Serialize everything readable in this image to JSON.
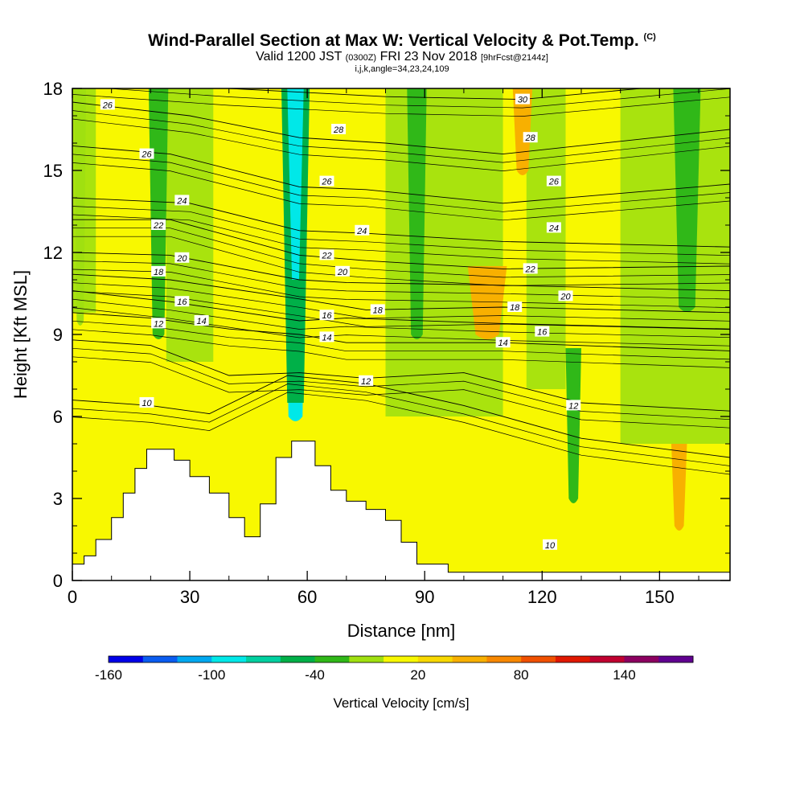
{
  "header": {
    "title_main": "Wind-Parallel Section at Max W: Vertical Velocity & Pot.Temp.",
    "title_copy": "(C)",
    "valid_prefix": "Valid 1200 JST",
    "valid_utc": "(0300Z)",
    "valid_date": "FRI 23 Nov 2018",
    "valid_fcst": "[9hrFcst@2144z]",
    "params": "i,j,k,angle=34,23,24,109"
  },
  "chart_data": {
    "type": "heatmap",
    "xlabel": "Distance [nm]",
    "ylabel": "Height [Kft MSL]",
    "xlim": [
      0,
      168
    ],
    "ylim": [
      0,
      18
    ],
    "x_ticks": [
      0,
      30,
      60,
      90,
      120,
      150
    ],
    "x_tick_labels": [
      "0",
      "30",
      "60",
      "90",
      "120",
      "150"
    ],
    "y_ticks": [
      0,
      3,
      6,
      9,
      12,
      15,
      18
    ],
    "y_tick_labels": [
      "0",
      "3",
      "6",
      "9",
      "12",
      "15",
      "18"
    ],
    "colorbar": {
      "title": "Vertical Velocity [cm/s]",
      "levels": [
        -160,
        -140,
        -120,
        -100,
        -80,
        -60,
        -40,
        -20,
        0,
        20,
        40,
        60,
        80,
        100,
        120,
        140,
        160
      ],
      "label_values": [
        "-160",
        "-100",
        "-40",
        "20",
        "80",
        "140"
      ],
      "colors": [
        "#0000e8",
        "#0a5cf0",
        "#00a8f0",
        "#00e8e8",
        "#00d0a0",
        "#00b048",
        "#30b818",
        "#a0e010",
        "#f8f800",
        "#f8d800",
        "#f8b000",
        "#f88800",
        "#f05000",
        "#e01800",
        "#c00030",
        "#8c0060",
        "#600090"
      ]
    },
    "velocity_bands": [
      {
        "x_center": 2,
        "top": 18,
        "bottom": 9.5,
        "width": 3,
        "class": -20
      },
      {
        "x_center": 22,
        "top": 18,
        "bottom": 9,
        "width": 5,
        "class": -40
      },
      {
        "x_center": 57,
        "top": 18,
        "bottom": 6,
        "width": 6,
        "class": -100
      },
      {
        "x_center": 88,
        "top": 18,
        "bottom": 9,
        "width": 5,
        "class": -40
      },
      {
        "x_center": 128,
        "top": 8.5,
        "bottom": 3,
        "width": 4,
        "class": -40
      },
      {
        "x_center": 157,
        "top": 18,
        "bottom": 10,
        "width": 7,
        "class": -40
      },
      {
        "x_center": 115,
        "top": 18,
        "bottom": 15,
        "width": 5,
        "class": 40
      },
      {
        "x_center": 106,
        "top": 11.5,
        "bottom": 9,
        "width": 10,
        "class": 40
      },
      {
        "x_center": 155,
        "top": 5,
        "bottom": 2,
        "width": 4,
        "class": 40
      }
    ],
    "terrain_kft": [
      [
        0,
        0.6
      ],
      [
        3,
        0.9
      ],
      [
        6,
        1.5
      ],
      [
        10,
        2.3
      ],
      [
        13,
        3.2
      ],
      [
        16,
        4.1
      ],
      [
        19,
        4.8
      ],
      [
        26,
        4.4
      ],
      [
        30,
        3.8
      ],
      [
        35,
        3.2
      ],
      [
        40,
        2.3
      ],
      [
        44,
        1.6
      ],
      [
        48,
        2.8
      ],
      [
        52,
        4.5
      ],
      [
        56,
        5.1
      ],
      [
        60,
        5.1
      ],
      [
        62,
        4.2
      ],
      [
        66,
        3.3
      ],
      [
        70,
        2.9
      ],
      [
        75,
        2.6
      ],
      [
        80,
        2.2
      ],
      [
        84,
        1.4
      ],
      [
        88,
        0.6
      ],
      [
        96,
        0.3
      ],
      [
        168,
        0.3
      ]
    ],
    "theta_contours": [
      {
        "level": 10,
        "heights": [
          [
            0,
            6.6
          ],
          [
            20,
            6.4
          ],
          [
            35,
            6.1
          ],
          [
            55,
            7.5
          ],
          [
            75,
            7.2
          ],
          [
            100,
            6.4
          ],
          [
            130,
            5.2
          ],
          [
            168,
            4.5
          ]
        ]
      },
      {
        "level": 12,
        "heights": [
          [
            0,
            8.8
          ],
          [
            20,
            8.6
          ],
          [
            40,
            7.5
          ],
          [
            58,
            7.6
          ],
          [
            75,
            7.4
          ],
          [
            100,
            7.6
          ],
          [
            130,
            6.5
          ],
          [
            168,
            6.2
          ]
        ]
      },
      {
        "level": 14,
        "heights": [
          [
            0,
            9.8
          ],
          [
            20,
            9.6
          ],
          [
            40,
            9.2
          ],
          [
            58,
            9.0
          ],
          [
            70,
            8.7
          ],
          [
            110,
            8.7
          ],
          [
            168,
            8.4
          ]
        ]
      },
      {
        "level": 16,
        "heights": [
          [
            0,
            10.6
          ],
          [
            25,
            10.2
          ],
          [
            58,
            9.5
          ],
          [
            70,
            9.6
          ],
          [
            110,
            9.4
          ],
          [
            168,
            9.2
          ]
        ]
      },
      {
        "level": 18,
        "heights": [
          [
            0,
            11.2
          ],
          [
            25,
            11.0
          ],
          [
            58,
            10.3
          ],
          [
            75,
            9.9
          ],
          [
            110,
            10.0
          ],
          [
            168,
            9.8
          ]
        ]
      },
      {
        "level": 20,
        "heights": [
          [
            0,
            12.0
          ],
          [
            25,
            11.9
          ],
          [
            58,
            11.0
          ],
          [
            70,
            10.9
          ],
          [
            110,
            10.8
          ],
          [
            168,
            10.6
          ]
        ]
      },
      {
        "level": 22,
        "heights": [
          [
            0,
            13.2
          ],
          [
            25,
            13.2
          ],
          [
            58,
            11.9
          ],
          [
            75,
            11.7
          ],
          [
            110,
            11.4
          ],
          [
            168,
            11.5
          ]
        ]
      },
      {
        "level": 24,
        "heights": [
          [
            0,
            14.0
          ],
          [
            30,
            13.8
          ],
          [
            58,
            12.8
          ],
          [
            75,
            12.7
          ],
          [
            110,
            12.4
          ],
          [
            168,
            12.2
          ]
        ]
      },
      {
        "level": 26,
        "heights": [
          [
            0,
            15.9
          ],
          [
            25,
            15.6
          ],
          [
            58,
            14.4
          ],
          [
            75,
            14.3
          ],
          [
            110,
            13.8
          ],
          [
            168,
            14.5
          ]
        ]
      },
      {
        "level": 28,
        "heights": [
          [
            0,
            17.5
          ],
          [
            30,
            17.0
          ],
          [
            58,
            16.2
          ],
          [
            80,
            16.0
          ],
          [
            110,
            15.6
          ],
          [
            168,
            16.5
          ]
        ]
      },
      {
        "level": 30,
        "heights": [
          [
            0,
            18.4
          ],
          [
            40,
            18.0
          ],
          [
            80,
            17.7
          ],
          [
            115,
            17.6
          ],
          [
            168,
            18.3
          ]
        ]
      }
    ],
    "contour_labels": [
      {
        "text": "26",
        "x": 9,
        "y": 17.4
      },
      {
        "text": "26",
        "x": 19,
        "y": 15.6
      },
      {
        "text": "24",
        "x": 28,
        "y": 13.9
      },
      {
        "text": "22",
        "x": 22,
        "y": 13.0
      },
      {
        "text": "20",
        "x": 28,
        "y": 11.8
      },
      {
        "text": "18",
        "x": 22,
        "y": 11.3
      },
      {
        "text": "16",
        "x": 28,
        "y": 10.2
      },
      {
        "text": "14",
        "x": 33,
        "y": 9.5
      },
      {
        "text": "12",
        "x": 22,
        "y": 9.4
      },
      {
        "text": "10",
        "x": 19,
        "y": 6.5
      },
      {
        "text": "28",
        "x": 68,
        "y": 16.5
      },
      {
        "text": "26",
        "x": 65,
        "y": 14.6
      },
      {
        "text": "24",
        "x": 74,
        "y": 12.8
      },
      {
        "text": "22",
        "x": 65,
        "y": 11.9
      },
      {
        "text": "20",
        "x": 69,
        "y": 11.3
      },
      {
        "text": "16",
        "x": 65,
        "y": 9.7
      },
      {
        "text": "14",
        "x": 65,
        "y": 8.9
      },
      {
        "text": "18",
        "x": 78,
        "y": 9.9
      },
      {
        "text": "12",
        "x": 75,
        "y": 7.3
      },
      {
        "text": "30",
        "x": 115,
        "y": 17.6
      },
      {
        "text": "28",
        "x": 117,
        "y": 16.2
      },
      {
        "text": "26",
        "x": 123,
        "y": 14.6
      },
      {
        "text": "24",
        "x": 123,
        "y": 12.9
      },
      {
        "text": "22",
        "x": 117,
        "y": 11.4
      },
      {
        "text": "20",
        "x": 126,
        "y": 10.4
      },
      {
        "text": "18",
        "x": 113,
        "y": 10.0
      },
      {
        "text": "16",
        "x": 120,
        "y": 9.1
      },
      {
        "text": "14",
        "x": 110,
        "y": 8.7
      },
      {
        "text": "12",
        "x": 128,
        "y": 6.4
      },
      {
        "text": "10",
        "x": 122,
        "y": 1.3
      }
    ]
  }
}
